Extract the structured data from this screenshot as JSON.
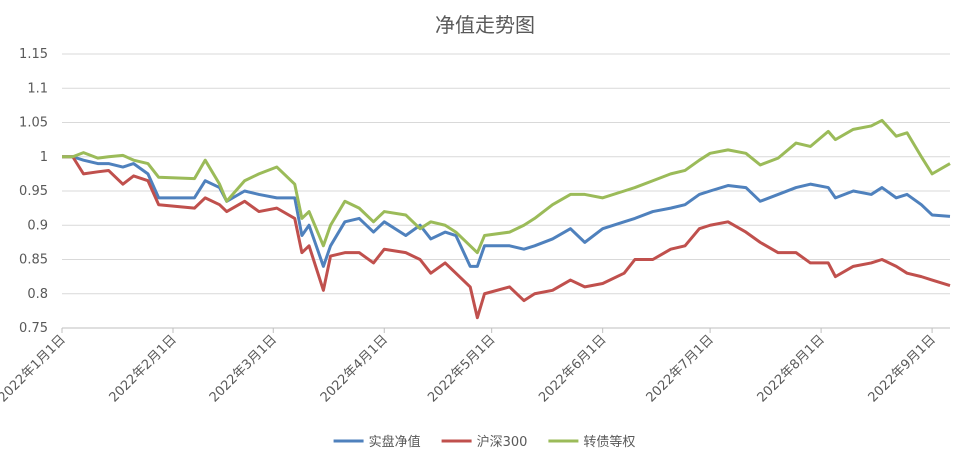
{
  "chart_data": {
    "type": "line",
    "title": "净值走势图",
    "x": [
      "2022-01-01",
      "2022-01-04",
      "2022-01-07",
      "2022-01-11",
      "2022-01-14",
      "2022-01-18",
      "2022-01-21",
      "2022-01-25",
      "2022-01-28",
      "2022-02-07",
      "2022-02-10",
      "2022-02-14",
      "2022-02-16",
      "2022-02-21",
      "2022-02-25",
      "2022-03-02",
      "2022-03-07",
      "2022-03-09",
      "2022-03-11",
      "2022-03-15",
      "2022-03-17",
      "2022-03-21",
      "2022-03-25",
      "2022-03-29",
      "2022-04-01",
      "2022-04-07",
      "2022-04-11",
      "2022-04-14",
      "2022-04-18",
      "2022-04-21",
      "2022-04-25",
      "2022-04-27",
      "2022-04-29",
      "2022-05-06",
      "2022-05-10",
      "2022-05-13",
      "2022-05-18",
      "2022-05-23",
      "2022-05-27",
      "2022-06-01",
      "2022-06-07",
      "2022-06-10",
      "2022-06-15",
      "2022-06-20",
      "2022-06-24",
      "2022-06-28",
      "2022-07-01",
      "2022-07-06",
      "2022-07-11",
      "2022-07-15",
      "2022-07-20",
      "2022-07-25",
      "2022-07-29",
      "2022-08-03",
      "2022-08-05",
      "2022-08-10",
      "2022-08-15",
      "2022-08-18",
      "2022-08-22",
      "2022-08-25",
      "2022-08-29",
      "2022-09-01",
      "2022-09-06"
    ],
    "series": [
      {
        "name": "实盘净值",
        "color": "#4f81bd",
        "values": [
          1.0,
          1.0,
          0.995,
          0.99,
          0.99,
          0.985,
          0.99,
          0.975,
          0.94,
          0.94,
          0.965,
          0.955,
          0.935,
          0.95,
          0.945,
          0.94,
          0.94,
          0.885,
          0.9,
          0.84,
          0.87,
          0.905,
          0.91,
          0.89,
          0.905,
          0.885,
          0.9,
          0.88,
          0.89,
          0.885,
          0.84,
          0.84,
          0.87,
          0.87,
          0.865,
          0.87,
          0.88,
          0.895,
          0.875,
          0.895,
          0.905,
          0.91,
          0.92,
          0.925,
          0.93,
          0.945,
          0.95,
          0.958,
          0.955,
          0.935,
          0.945,
          0.955,
          0.96,
          0.955,
          0.94,
          0.95,
          0.945,
          0.955,
          0.94,
          0.945,
          0.93,
          0.915,
          0.913
        ]
      },
      {
        "name": "沪深300",
        "color": "#c0504d",
        "values": [
          1.0,
          1.0,
          0.975,
          0.978,
          0.98,
          0.96,
          0.972,
          0.965,
          0.93,
          0.925,
          0.94,
          0.93,
          0.92,
          0.935,
          0.92,
          0.925,
          0.91,
          0.86,
          0.87,
          0.805,
          0.855,
          0.86,
          0.86,
          0.845,
          0.865,
          0.86,
          0.85,
          0.83,
          0.845,
          0.83,
          0.81,
          0.765,
          0.8,
          0.81,
          0.79,
          0.8,
          0.805,
          0.82,
          0.81,
          0.815,
          0.83,
          0.85,
          0.85,
          0.865,
          0.87,
          0.895,
          0.9,
          0.905,
          0.89,
          0.875,
          0.86,
          0.86,
          0.845,
          0.845,
          0.825,
          0.84,
          0.845,
          0.85,
          0.84,
          0.83,
          0.825,
          0.82,
          0.812
        ]
      },
      {
        "name": "转债等权",
        "color": "#9bbb59",
        "values": [
          1.0,
          1.0,
          1.006,
          0.998,
          1.0,
          1.002,
          0.995,
          0.99,
          0.97,
          0.968,
          0.995,
          0.96,
          0.935,
          0.965,
          0.975,
          0.985,
          0.96,
          0.91,
          0.92,
          0.87,
          0.9,
          0.935,
          0.925,
          0.905,
          0.92,
          0.915,
          0.895,
          0.905,
          0.9,
          0.89,
          0.87,
          0.86,
          0.885,
          0.89,
          0.9,
          0.91,
          0.93,
          0.945,
          0.945,
          0.94,
          0.95,
          0.955,
          0.965,
          0.975,
          0.98,
          0.995,
          1.005,
          1.01,
          1.005,
          0.988,
          0.998,
          1.02,
          1.015,
          1.037,
          1.025,
          1.04,
          1.045,
          1.053,
          1.03,
          1.035,
          1.0,
          0.975,
          0.99
        ]
      }
    ],
    "xlim": [
      "2022-01-01",
      "2022-09-06"
    ],
    "xticks": [
      {
        "value": "2022-01-01",
        "label": "2022年1月1日"
      },
      {
        "value": "2022-02-01",
        "label": "2022年2月1日"
      },
      {
        "value": "2022-03-01",
        "label": "2022年3月1日"
      },
      {
        "value": "2022-04-01",
        "label": "2022年4月1日"
      },
      {
        "value": "2022-05-01",
        "label": "2022年5月1日"
      },
      {
        "value": "2022-06-01",
        "label": "2022年6月1日"
      },
      {
        "value": "2022-07-01",
        "label": "2022年7月1日"
      },
      {
        "value": "2022-08-01",
        "label": "2022年8月1日"
      },
      {
        "value": "2022-09-01",
        "label": "2022年9月1日"
      }
    ],
    "ylim": [
      0.75,
      1.15
    ],
    "yticks": [
      0.75,
      0.8,
      0.85,
      0.9,
      0.95,
      1,
      1.05,
      1.1,
      1.15
    ],
    "grid": true,
    "legend": "bottom"
  }
}
